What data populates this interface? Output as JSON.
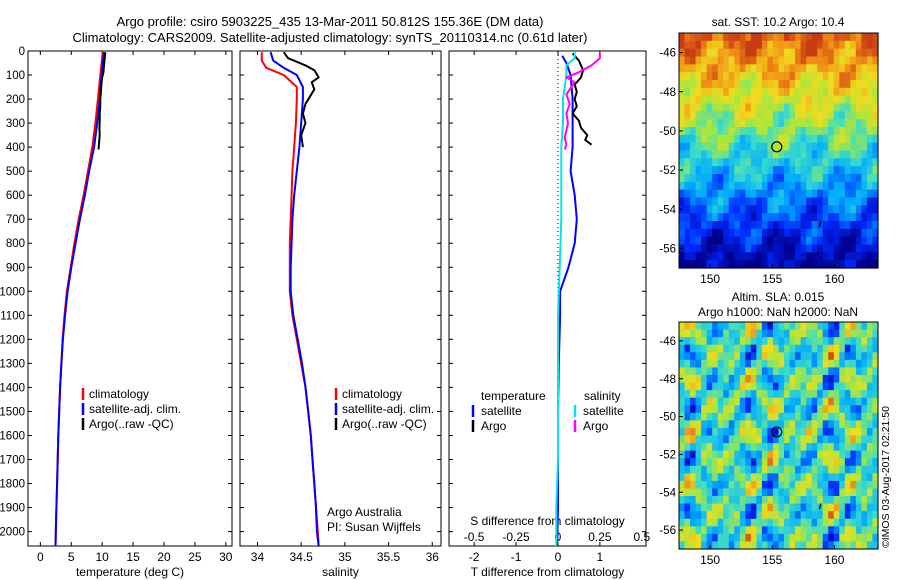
{
  "header": {
    "title_line1": "Argo profile: csiro 5903225_435 13-Mar-2011 50.812S 155.36E (DM data)",
    "title_line2": "Climatology: CARS2009. Satellite-adjusted climatology: synTS_20110314.nc (0.61d later)"
  },
  "colors": {
    "climatology": "#ff0000",
    "satellite": "#0000ff",
    "argo": "#000000",
    "salinity_satellite": "#00e5e5",
    "salinity_argo": "#ff00ff"
  },
  "chart_data": [
    {
      "type": "line",
      "xlabel": "temperature (deg C)",
      "ylabel": "",
      "xlim": [
        -2,
        31
      ],
      "ylim": [
        2060,
        0
      ],
      "xticks": [
        0,
        5,
        10,
        15,
        20,
        25,
        30
      ],
      "yticks": [
        0,
        100,
        200,
        300,
        400,
        500,
        600,
        700,
        800,
        900,
        1000,
        1100,
        1200,
        1300,
        1400,
        1500,
        1600,
        1700,
        1800,
        1900,
        2000
      ],
      "legend": {
        "position": "lower-center",
        "entries": [
          "climatology",
          "satellite-adj. clim.",
          "Argo(..raw -QC)"
        ]
      },
      "series": [
        {
          "name": "climatology",
          "color": "#ff0000",
          "points": [
            [
              10.1,
              5
            ],
            [
              9.9,
              50
            ],
            [
              9.7,
              100
            ],
            [
              9.3,
              200
            ],
            [
              8.9,
              300
            ],
            [
              8.4,
              400
            ],
            [
              7.7,
              500
            ],
            [
              7.0,
              600
            ],
            [
              6.2,
              700
            ],
            [
              5.5,
              800
            ],
            [
              4.9,
              900
            ],
            [
              4.3,
              1000
            ],
            [
              3.9,
              1100
            ],
            [
              3.6,
              1200
            ],
            [
              3.4,
              1300
            ],
            [
              3.2,
              1400
            ],
            [
              3.05,
              1500
            ],
            [
              2.9,
              1600
            ],
            [
              2.8,
              1700
            ],
            [
              2.7,
              1800
            ],
            [
              2.6,
              1900
            ],
            [
              2.5,
              2000
            ],
            [
              2.45,
              2060
            ]
          ]
        },
        {
          "name": "satellite-adj. clim.",
          "color": "#0000ff",
          "points": [
            [
              10.3,
              5
            ],
            [
              10.1,
              50
            ],
            [
              9.9,
              100
            ],
            [
              9.6,
              200
            ],
            [
              9.2,
              300
            ],
            [
              8.7,
              400
            ],
            [
              7.9,
              500
            ],
            [
              7.2,
              600
            ],
            [
              6.4,
              700
            ],
            [
              5.7,
              800
            ],
            [
              5.0,
              900
            ],
            [
              4.4,
              1000
            ],
            [
              4.0,
              1100
            ],
            [
              3.65,
              1200
            ],
            [
              3.4,
              1300
            ],
            [
              3.2,
              1400
            ],
            [
              3.05,
              1500
            ],
            [
              2.9,
              1600
            ],
            [
              2.8,
              1700
            ],
            [
              2.7,
              1800
            ],
            [
              2.6,
              1900
            ],
            [
              2.5,
              2000
            ],
            [
              2.45,
              2060
            ]
          ]
        },
        {
          "name": "Argo(..raw -QC)",
          "color": "#000000",
          "points": [
            [
              10.5,
              5
            ],
            [
              10.4,
              30
            ],
            [
              10.3,
              60
            ],
            [
              10.2,
              90
            ],
            [
              10.0,
              110
            ],
            [
              9.9,
              130
            ],
            [
              9.8,
              170
            ],
            [
              9.7,
              200
            ],
            [
              9.7,
              230
            ],
            [
              9.6,
              260
            ],
            [
              9.6,
              290
            ],
            [
              9.55,
              320
            ],
            [
              9.6,
              350
            ],
            [
              9.5,
              380
            ],
            [
              9.4,
              410
            ]
          ]
        }
      ]
    },
    {
      "type": "line",
      "xlabel": "salinity",
      "ylabel": "",
      "xlim": [
        33.8,
        36.1
      ],
      "ylim": [
        2060,
        0
      ],
      "xticks": [
        34,
        34.5,
        35,
        35.5,
        36
      ],
      "legend": {
        "position": "lower-center",
        "entries": [
          "climatology",
          "satellite-adj. clim.",
          "Argo(..raw -QC)"
        ]
      },
      "annotation": [
        "Argo Australia",
        "PI: Susan Wijffels"
      ],
      "series": [
        {
          "name": "climatology",
          "color": "#ff0000",
          "points": [
            [
              34.05,
              5
            ],
            [
              34.05,
              40
            ],
            [
              34.1,
              70
            ],
            [
              34.3,
              100
            ],
            [
              34.45,
              150
            ],
            [
              34.45,
              200
            ],
            [
              34.44,
              300
            ],
            [
              34.42,
              400
            ],
            [
              34.4,
              500
            ],
            [
              34.39,
              600
            ],
            [
              34.38,
              700
            ],
            [
              34.37,
              800
            ],
            [
              34.37,
              900
            ],
            [
              34.37,
              1000
            ],
            [
              34.4,
              1100
            ],
            [
              34.45,
              1200
            ],
            [
              34.5,
              1300
            ],
            [
              34.55,
              1400
            ],
            [
              34.58,
              1500
            ],
            [
              34.61,
              1600
            ],
            [
              34.63,
              1700
            ],
            [
              34.65,
              1800
            ],
            [
              34.67,
              1900
            ],
            [
              34.69,
              2000
            ],
            [
              34.7,
              2060
            ]
          ]
        },
        {
          "name": "satellite-adj. clim.",
          "color": "#0000ff",
          "points": [
            [
              34.15,
              5
            ],
            [
              34.18,
              40
            ],
            [
              34.3,
              70
            ],
            [
              34.45,
              100
            ],
            [
              34.52,
              150
            ],
            [
              34.52,
              200
            ],
            [
              34.5,
              300
            ],
            [
              34.48,
              400
            ],
            [
              34.45,
              500
            ],
            [
              34.42,
              600
            ],
            [
              34.4,
              700
            ],
            [
              34.39,
              800
            ],
            [
              34.38,
              900
            ],
            [
              34.38,
              1000
            ],
            [
              34.41,
              1100
            ],
            [
              34.46,
              1200
            ],
            [
              34.51,
              1300
            ],
            [
              34.55,
              1400
            ],
            [
              34.58,
              1500
            ],
            [
              34.61,
              1600
            ],
            [
              34.63,
              1700
            ],
            [
              34.65,
              1800
            ],
            [
              34.67,
              1900
            ],
            [
              34.68,
              2000
            ],
            [
              34.7,
              2060
            ]
          ]
        },
        {
          "name": "Argo(..raw -QC)",
          "color": "#000000",
          "points": [
            [
              34.3,
              5
            ],
            [
              34.35,
              30
            ],
            [
              34.55,
              60
            ],
            [
              34.65,
              80
            ],
            [
              34.7,
              110
            ],
            [
              34.62,
              130
            ],
            [
              34.65,
              160
            ],
            [
              34.6,
              190
            ],
            [
              34.55,
              220
            ],
            [
              34.52,
              260
            ],
            [
              34.55,
              300
            ],
            [
              34.5,
              350
            ],
            [
              34.52,
              400
            ]
          ]
        }
      ]
    },
    {
      "type": "line",
      "xlabel": "T difference from climatology",
      "x2label": "S difference from climatology",
      "xlim": [
        -2.6,
        2.1
      ],
      "ylim": [
        2060,
        0
      ],
      "xticks": [
        -2,
        -1,
        0,
        1
      ],
      "x2ticks": [
        -0.5,
        -0.25,
        0,
        0.25,
        0.5
      ],
      "x2lim": [
        -0.65,
        0.525
      ],
      "legend": {
        "position": "lower-center",
        "temperature_title": "temperature",
        "salinity_title": "salinity",
        "entries": [
          "satellite",
          "Argo",
          "satellite",
          "Argo"
        ]
      },
      "series": [
        {
          "name": "satellite",
          "group": "temperature",
          "color": "#0000ff",
          "points": [
            [
              0.1,
              20
            ],
            [
              0.2,
              50
            ],
            [
              0.3,
              100
            ],
            [
              0.35,
              200
            ],
            [
              0.35,
              300
            ],
            [
              0.35,
              400
            ],
            [
              0.3,
              500
            ],
            [
              0.4,
              600
            ],
            [
              0.45,
              700
            ],
            [
              0.4,
              800
            ],
            [
              0.25,
              900
            ],
            [
              0.05,
              1000
            ],
            [
              0.05,
              1100
            ],
            [
              0.02,
              1300
            ],
            [
              0,
              1500
            ],
            [
              0,
              1700
            ],
            [
              0,
              1900
            ],
            [
              -0.02,
              2060
            ]
          ]
        },
        {
          "name": "Argo",
          "group": "temperature",
          "color": "#000000",
          "points": [
            [
              0.35,
              10
            ],
            [
              0.5,
              40
            ],
            [
              0.6,
              80
            ],
            [
              0.55,
              110
            ],
            [
              0.4,
              140
            ],
            [
              0.45,
              170
            ],
            [
              0.4,
              200
            ],
            [
              0.45,
              230
            ],
            [
              0.35,
              260
            ],
            [
              0.5,
              290
            ],
            [
              0.55,
              320
            ],
            [
              0.7,
              350
            ],
            [
              0.65,
              370
            ],
            [
              0.8,
              390
            ]
          ]
        },
        {
          "name": "satellite",
          "group": "salinity",
          "color": "#00e5e5",
          "points": [
            [
              0.1,
              5
            ],
            [
              0.1,
              30
            ],
            [
              0.05,
              60
            ],
            [
              0.05,
              100
            ],
            [
              0.03,
              200
            ],
            [
              0.03,
              300
            ],
            [
              0.02,
              400
            ],
            [
              0.02,
              500
            ],
            [
              0.02,
              700
            ],
            [
              0.01,
              900
            ],
            [
              0.0,
              1100
            ],
            [
              0.0,
              1300
            ],
            [
              0.0,
              1500
            ],
            [
              0.0,
              1700
            ],
            [
              -0.01,
              1900
            ],
            [
              -0.01,
              2060
            ]
          ]
        },
        {
          "name": "Argo",
          "group": "salinity",
          "color": "#ff00ff",
          "points": [
            [
              0.25,
              10
            ],
            [
              0.25,
              30
            ],
            [
              0.2,
              60
            ],
            [
              0.12,
              90
            ],
            [
              0.05,
              110
            ],
            [
              0.1,
              130
            ],
            [
              0.08,
              150
            ],
            [
              0.05,
              180
            ],
            [
              0.07,
              220
            ],
            [
              0.05,
              260
            ],
            [
              0.06,
              300
            ],
            [
              0.05,
              330
            ],
            [
              0.04,
              360
            ],
            [
              0.05,
              390
            ],
            [
              0.04,
              410
            ]
          ]
        }
      ]
    },
    {
      "type": "heatmap",
      "title": "sat. SST: 10.2  Argo: 10.4",
      "xlim": [
        147.5,
        163.5
      ],
      "ylim": [
        -57,
        -45
      ],
      "xticks": [
        150,
        155,
        160
      ],
      "yticks": [
        -46,
        -48,
        -50,
        -52,
        -54,
        -56
      ],
      "field": "sea surface temperature",
      "marker": {
        "lon": 155.36,
        "lat": -50.812
      }
    },
    {
      "type": "heatmap",
      "title_line1": "Altim. SLA: 0.015",
      "title_line2": "Argo h1000: NaN h2000: NaN",
      "xlim": [
        147.5,
        163.5
      ],
      "ylim": [
        -57,
        -45
      ],
      "xticks": [
        150,
        155,
        160
      ],
      "yticks": [
        -46,
        -48,
        -50,
        -52,
        -54,
        -56
      ],
      "field": "sea level anomaly",
      "marker": {
        "lon": 155.36,
        "lat": -50.812
      }
    }
  ],
  "footer": {
    "credit": "©IMOS 03-Aug-2017 02:21:50"
  }
}
